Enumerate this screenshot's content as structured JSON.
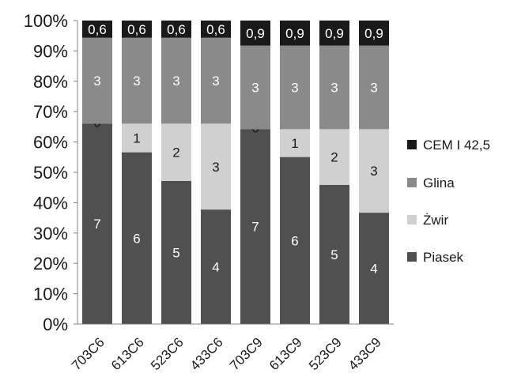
{
  "chart_data": {
    "type": "bar",
    "stacked": true,
    "normalized": true,
    "categories": [
      "703C6",
      "613C6",
      "523C6",
      "433C6",
      "703C9",
      "613C9",
      "523C9",
      "433C9"
    ],
    "series": [
      {
        "name": "Piasek",
        "values": [
          7,
          6,
          5,
          4,
          7,
          6,
          5,
          4
        ],
        "labels": [
          "7",
          "6",
          "5",
          "4",
          "7",
          "6",
          "5",
          "4"
        ],
        "color": "#505050",
        "label_color": "#ffffff"
      },
      {
        "name": "Żwir",
        "values": [
          0,
          1,
          2,
          3,
          0,
          1,
          2,
          3
        ],
        "labels": [
          "0",
          "1",
          "2",
          "3",
          "0",
          "1",
          "2",
          "3"
        ],
        "color": "#d0d0d0",
        "label_color": "#1a1a1a"
      },
      {
        "name": "Glina",
        "values": [
          3,
          3,
          3,
          3,
          3,
          3,
          3,
          3
        ],
        "labels": [
          "3",
          "3",
          "3",
          "3",
          "3",
          "3",
          "3",
          "3"
        ],
        "color": "#8a8a8a",
        "label_color": "#ffffff"
      },
      {
        "name": "CEM I 42,5",
        "values": [
          0.6,
          0.6,
          0.6,
          0.6,
          0.9,
          0.9,
          0.9,
          0.9
        ],
        "labels": [
          "0,6",
          "0,6",
          "0,6",
          "0,6",
          "0,9",
          "0,9",
          "0,9",
          "0,9"
        ],
        "color": "#1a1a1a",
        "label_color": "#ffffff"
      }
    ],
    "yticks": [
      "0%",
      "10%",
      "20%",
      "30%",
      "40%",
      "50%",
      "60%",
      "70%",
      "80%",
      "90%",
      "100%"
    ],
    "ylim": [
      0,
      100
    ],
    "legend_position": "right",
    "legend_order": [
      "CEM I 42,5",
      "Glina",
      "Żwir",
      "Piasek"
    ],
    "grid": false
  }
}
